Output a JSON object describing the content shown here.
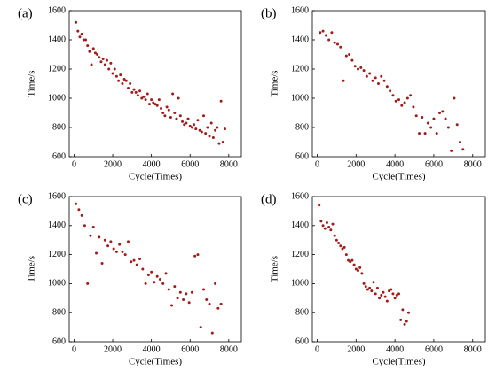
{
  "chart_data": [
    {
      "type": "scatter",
      "title": "(a)",
      "xlabel": "Cycle(Times)",
      "ylabel": "Time/s",
      "color": "#a01c1c",
      "xlim": [
        -250,
        8650
      ],
      "ylim": [
        600,
        1600
      ],
      "xticks": [
        0,
        2000,
        4000,
        6000,
        8000
      ],
      "yticks": [
        600,
        800,
        1000,
        1200,
        1400,
        1600
      ],
      "x": [
        100,
        200,
        300,
        400,
        500,
        600,
        700,
        800,
        900,
        1000,
        1100,
        1200,
        1300,
        1400,
        1500,
        1600,
        1700,
        1800,
        1900,
        2000,
        2100,
        2200,
        2300,
        2400,
        2500,
        2600,
        2700,
        2800,
        2900,
        3000,
        3100,
        3200,
        3300,
        3400,
        3500,
        3600,
        3700,
        3800,
        3900,
        4000,
        4100,
        4200,
        4300,
        4400,
        4500,
        4600,
        4700,
        4800,
        4900,
        5000,
        5100,
        5200,
        5300,
        5400,
        5500,
        5600,
        5700,
        5800,
        5900,
        6000,
        6100,
        6200,
        6300,
        6400,
        6500,
        6600,
        6700,
        6800,
        6900,
        7000,
        7100,
        7200,
        7300,
        7400,
        7500,
        7600,
        7700,
        7800
      ],
      "values": [
        1520,
        1460,
        1420,
        1440,
        1400,
        1400,
        1360,
        1320,
        1230,
        1340,
        1310,
        1300,
        1280,
        1250,
        1270,
        1230,
        1260,
        1200,
        1240,
        1170,
        1200,
        1150,
        1120,
        1160,
        1100,
        1130,
        1120,
        1070,
        1100,
        1040,
        1060,
        1040,
        1020,
        1050,
        1000,
        1010,
        990,
        1030,
        960,
        990,
        970,
        960,
        950,
        990,
        930,
        900,
        880,
        940,
        920,
        870,
        1030,
        900,
        860,
        1000,
        880,
        840,
        820,
        830,
        860,
        810,
        800,
        820,
        790,
        850,
        780,
        770,
        880,
        760,
        800,
        740,
        830,
        730,
        780,
        800,
        690,
        980,
        700,
        790
      ]
    },
    {
      "type": "scatter",
      "title": "(b)",
      "xlabel": "Cycle(Times)",
      "ylabel": "Time/s",
      "color": "#a01c1c",
      "xlim": [
        -250,
        8650
      ],
      "ylim": [
        600,
        1600
      ],
      "xticks": [
        0,
        2000,
        4000,
        6000,
        8000
      ],
      "yticks": [
        600,
        800,
        1000,
        1200,
        1400,
        1600
      ],
      "x": [
        150,
        300,
        450,
        600,
        750,
        900,
        1050,
        1200,
        1350,
        1500,
        1650,
        1800,
        1950,
        2100,
        2250,
        2400,
        2550,
        2700,
        2850,
        3000,
        3150,
        3300,
        3450,
        3600,
        3750,
        3900,
        4050,
        4200,
        4350,
        4500,
        4650,
        4800,
        4950,
        5100,
        5250,
        5400,
        5550,
        5700,
        5850,
        6000,
        6150,
        6300,
        6450,
        6600,
        6750,
        6900,
        7050,
        7200,
        7350,
        7500
      ],
      "values": [
        1450,
        1460,
        1430,
        1400,
        1450,
        1380,
        1370,
        1350,
        1120,
        1290,
        1300,
        1260,
        1220,
        1200,
        1210,
        1190,
        1150,
        1170,
        1120,
        1140,
        1100,
        1150,
        1120,
        1080,
        1050,
        1020,
        980,
        990,
        950,
        970,
        1000,
        1020,
        940,
        880,
        760,
        870,
        760,
        830,
        800,
        860,
        760,
        900,
        910,
        860,
        800,
        640,
        1000,
        820,
        700,
        650
      ]
    },
    {
      "type": "scatter",
      "title": "(c)",
      "xlabel": "Cycle(Times)",
      "ylabel": "Time/s",
      "color": "#a01c1c",
      "xlim": [
        -250,
        8650
      ],
      "ylim": [
        600,
        1600
      ],
      "xticks": [
        0,
        2000,
        4000,
        6000,
        8000
      ],
      "yticks": [
        600,
        800,
        1000,
        1200,
        1400,
        1600
      ],
      "x": [
        100,
        250,
        400,
        550,
        700,
        850,
        1000,
        1150,
        1300,
        1450,
        1600,
        1750,
        1900,
        2050,
        2200,
        2350,
        2500,
        2650,
        2800,
        2950,
        3100,
        3250,
        3400,
        3550,
        3700,
        3850,
        4000,
        4150,
        4300,
        4450,
        4600,
        4750,
        4900,
        5050,
        5200,
        5350,
        5500,
        5650,
        5800,
        5950,
        6100,
        6250,
        6400,
        6550,
        6700,
        6850,
        7000,
        7150,
        7300,
        7450,
        7600
      ],
      "values": [
        1550,
        1510,
        1470,
        1400,
        1000,
        1330,
        1390,
        1210,
        1320,
        1140,
        1300,
        1260,
        1290,
        1240,
        1220,
        1270,
        1220,
        1200,
        1290,
        1150,
        1160,
        1130,
        1170,
        1100,
        1000,
        1060,
        1080,
        1010,
        1050,
        1030,
        1000,
        1070,
        960,
        850,
        980,
        900,
        940,
        890,
        930,
        870,
        940,
        1190,
        1200,
        700,
        960,
        890,
        860,
        660,
        1000,
        830,
        860
      ]
    },
    {
      "type": "scatter",
      "title": "(d)",
      "xlabel": "Cycle(Times)",
      "ylabel": "Time/s",
      "color": "#a01c1c",
      "xlim": [
        -250,
        8650
      ],
      "ylim": [
        600,
        1600
      ],
      "xticks": [
        0,
        2000,
        4000,
        6000,
        8000
      ],
      "yticks": [
        600,
        800,
        1000,
        1200,
        1400,
        1600
      ],
      "x": [
        100,
        200,
        300,
        400,
        500,
        600,
        700,
        800,
        900,
        1000,
        1100,
        1200,
        1300,
        1400,
        1500,
        1600,
        1700,
        1800,
        1900,
        2000,
        2100,
        2200,
        2300,
        2400,
        2500,
        2600,
        2700,
        2800,
        2900,
        3000,
        3100,
        3200,
        3300,
        3400,
        3500,
        3600,
        3700,
        3800,
        3900,
        4000,
        4100,
        4200,
        4300,
        4400,
        4500,
        4600,
        4700
      ],
      "values": [
        1540,
        1430,
        1400,
        1380,
        1420,
        1390,
        1370,
        1410,
        1330,
        1300,
        1280,
        1260,
        1240,
        1250,
        1200,
        1160,
        1150,
        1160,
        1130,
        1100,
        1090,
        1110,
        1070,
        1000,
        980,
        960,
        970,
        950,
        1010,
        930,
        970,
        900,
        920,
        940,
        910,
        880,
        950,
        960,
        930,
        900,
        920,
        930,
        750,
        820,
        720,
        740,
        800
      ]
    }
  ]
}
